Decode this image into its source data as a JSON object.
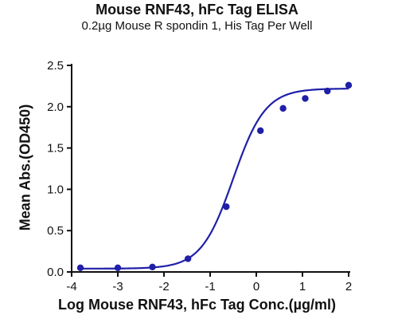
{
  "chart_data": {
    "type": "scatter",
    "title": "Mouse RNF43, hFc Tag ELISA",
    "subtitle": "0.2µg Mouse R spondin 1, His Tag Per Well",
    "xlabel": "Log Mouse RNF43, hFc Tag Conc.(µg/ml)",
    "ylabel": "Mean Abs.(OD450)",
    "xlim": [
      -4,
      2
    ],
    "ylim": [
      0,
      2.5
    ],
    "x_ticks": [
      "-4",
      "-3",
      "-2",
      "-1",
      "0",
      "1",
      "2"
    ],
    "y_ticks": [
      "0.0",
      "0.5",
      "1.0",
      "1.5",
      "2.0",
      "2.5"
    ],
    "grid": false,
    "colors": {
      "series": "#1f1fa8",
      "axis": "#111111"
    },
    "series": [
      {
        "points": [
          {
            "x": -3.81,
            "y": 0.05
          },
          {
            "x": -3.0,
            "y": 0.05
          },
          {
            "x": -2.25,
            "y": 0.06
          },
          {
            "x": -1.48,
            "y": 0.16
          },
          {
            "x": -0.65,
            "y": 0.79
          },
          {
            "x": 0.09,
            "y": 1.71
          },
          {
            "x": 0.58,
            "y": 1.98
          },
          {
            "x": 1.06,
            "y": 2.1
          },
          {
            "x": 1.54,
            "y": 2.19
          },
          {
            "x": 2.0,
            "y": 2.26
          }
        ],
        "fit": {
          "model": "4PL",
          "bottom": 0.04,
          "top": 2.22,
          "log_ec50": -0.5,
          "hill": 1.25
        }
      }
    ]
  }
}
